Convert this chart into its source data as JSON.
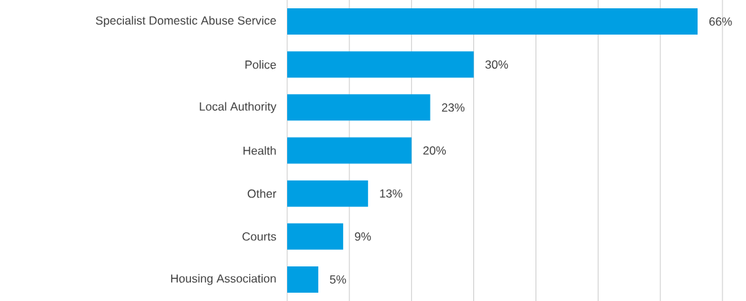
{
  "chart_data": {
    "type": "bar",
    "orientation": "horizontal",
    "categories": [
      "Specialist Domestic Abuse Service",
      "Police",
      "Local Authority",
      "Health",
      "Other",
      "Courts",
      "Housing Association"
    ],
    "values": [
      66,
      30,
      23,
      20,
      13,
      9,
      5
    ],
    "value_labels": [
      "66%",
      "30%",
      "23%",
      "20%",
      "13%",
      "9%",
      "5%"
    ],
    "color": "#009fe3",
    "xlim": [
      0,
      70
    ],
    "xticks": [
      {
        "value": 0,
        "label": null
      },
      {
        "value": 10,
        "label": null
      },
      {
        "value": 20,
        "label": null
      },
      {
        "value": 30,
        "label": null
      },
      {
        "value": 40,
        "label": null
      },
      {
        "value": 50,
        "label": null
      },
      {
        "value": 60,
        "label": null
      },
      {
        "value": 70,
        "label": null
      }
    ],
    "grid": "x",
    "tick_labels": "y"
  }
}
